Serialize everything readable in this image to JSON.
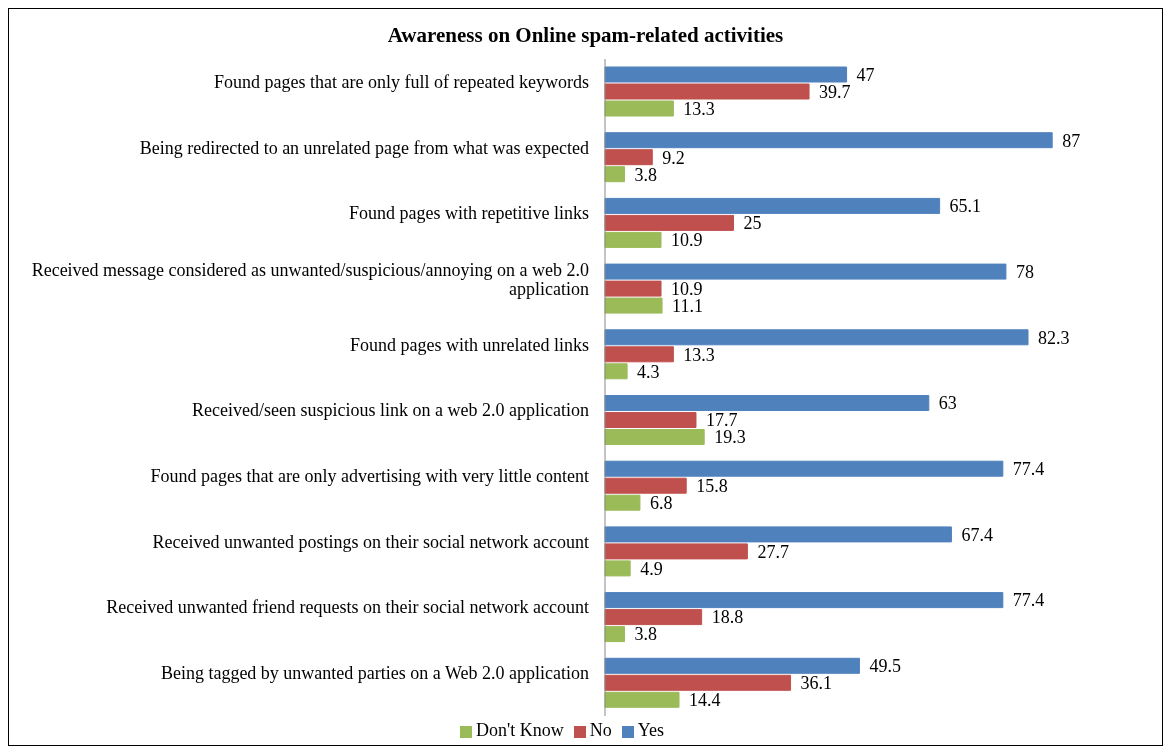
{
  "chart_data": {
    "type": "bar",
    "orientation": "horizontal",
    "title": "Awareness on Online spam-related activities",
    "categories": [
      "Found pages that are only full of repeated keywords",
      "Being redirected to an unrelated page from what was expected",
      "Found pages with repetitive links",
      "Received message considered as unwanted/suspicious/annoying on a web 2.0 application",
      "Found pages with unrelated links",
      "Received/seen suspicious link on a web 2.0 application",
      "Found pages that are only advertising with very little content",
      "Received unwanted postings on their social network account",
      "Received unwanted friend requests on their social network account",
      "Being tagged by unwanted parties on a Web 2.0 application"
    ],
    "series": [
      {
        "name": "Yes",
        "color": "#4f81bd",
        "values": [
          47,
          87,
          65.1,
          78,
          82.3,
          63,
          77.4,
          67.4,
          77.4,
          49.5
        ]
      },
      {
        "name": "No",
        "color": "#c0504d",
        "values": [
          39.7,
          9.2,
          25,
          10.9,
          13.3,
          17.7,
          15.8,
          27.7,
          18.8,
          36.1
        ]
      },
      {
        "name": "Don't Know",
        "color": "#9bbb59",
        "values": [
          13.3,
          3.8,
          10.9,
          11.1,
          4.3,
          19.3,
          6.8,
          4.9,
          3.8,
          14.4
        ]
      }
    ],
    "tick_labels": "y",
    "legend": "bottom",
    "data_labels": true
  }
}
